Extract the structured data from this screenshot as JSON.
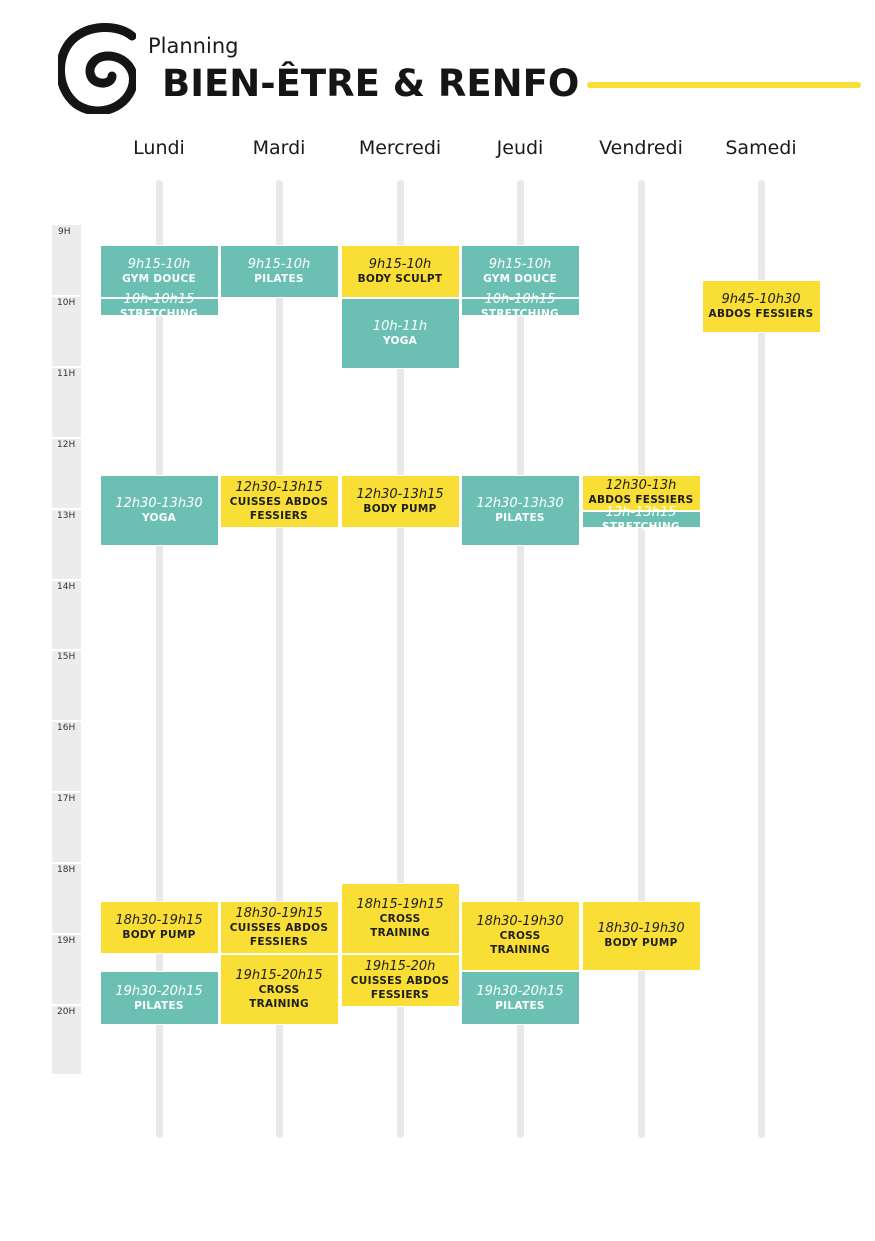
{
  "header": {
    "subtitle": "Planning",
    "title": "BIEN-ÊTRE & RENFO"
  },
  "colors": {
    "teal": "#6cc0b3",
    "yellow": "#f8de35",
    "track": "#e9e9e9",
    "hour_bar": "#ececec"
  },
  "days": [
    "Lundi",
    "Mardi",
    "Mercredi",
    "Jeudi",
    "Vendredi",
    "Samedi"
  ],
  "hours": [
    "9H",
    "10H",
    "11H",
    "12H",
    "13H",
    "14H",
    "15H",
    "16H",
    "17H",
    "18H",
    "19H",
    "20H"
  ],
  "sessions": [
    {
      "day": 0,
      "start": "9h15",
      "end": "10h",
      "time": "9h15-10h",
      "name": [
        "GYM DOUCE"
      ],
      "color": "teal"
    },
    {
      "day": 0,
      "start": "10h",
      "end": "10h15",
      "time": "10h-10h15",
      "name": [
        "STRETCHING"
      ],
      "color": "teal"
    },
    {
      "day": 0,
      "start": "12h30",
      "end": "13h30",
      "time": "12h30-13h30",
      "name": [
        "YOGA"
      ],
      "color": "teal"
    },
    {
      "day": 0,
      "start": "18h30",
      "end": "19h15",
      "time": "18h30-19h15",
      "name": [
        "BODY PUMP"
      ],
      "color": "yellow"
    },
    {
      "day": 0,
      "start": "19h30",
      "end": "20h15",
      "time": "19h30-20h15",
      "name": [
        "PILATES"
      ],
      "color": "teal"
    },
    {
      "day": 1,
      "start": "9h15",
      "end": "10h",
      "time": "9h15-10h",
      "name": [
        "PILATES"
      ],
      "color": "teal"
    },
    {
      "day": 1,
      "start": "12h30",
      "end": "13h15",
      "time": "12h30-13h15",
      "name": [
        "CUISSES ABDOS",
        "FESSIERS"
      ],
      "color": "yellow"
    },
    {
      "day": 1,
      "start": "18h30",
      "end": "19h15",
      "time": "18h30-19h15",
      "name": [
        "CUISSES ABDOS",
        "FESSIERS"
      ],
      "color": "yellow"
    },
    {
      "day": 1,
      "start": "19h15",
      "end": "20h15",
      "time": "19h15-20h15",
      "name": [
        "CROSS",
        "TRAINING"
      ],
      "color": "yellow"
    },
    {
      "day": 2,
      "start": "9h15",
      "end": "10h",
      "time": "9h15-10h",
      "name": [
        "BODY SCULPT"
      ],
      "color": "yellow"
    },
    {
      "day": 2,
      "start": "10h",
      "end": "11h",
      "time": "10h-11h",
      "name": [
        "YOGA"
      ],
      "color": "teal"
    },
    {
      "day": 2,
      "start": "12h30",
      "end": "13h15",
      "time": "12h30-13h15",
      "name": [
        "BODY PUMP"
      ],
      "color": "yellow"
    },
    {
      "day": 2,
      "start": "18h15",
      "end": "19h15",
      "time": "18h15-19h15",
      "name": [
        "CROSS",
        "TRAINING"
      ],
      "color": "yellow"
    },
    {
      "day": 2,
      "start": "19h15",
      "end": "20h",
      "time": "19h15-20h",
      "name": [
        "CUISSES ABDOS",
        "FESSIERS"
      ],
      "color": "yellow"
    },
    {
      "day": 3,
      "start": "9h15",
      "end": "10h",
      "time": "9h15-10h",
      "name": [
        "GYM DOUCE"
      ],
      "color": "teal"
    },
    {
      "day": 3,
      "start": "10h",
      "end": "10h15",
      "time": "10h-10h15",
      "name": [
        "STRETCHING"
      ],
      "color": "teal"
    },
    {
      "day": 3,
      "start": "12h30",
      "end": "13h30",
      "time": "12h30-13h30",
      "name": [
        "PILATES"
      ],
      "color": "teal"
    },
    {
      "day": 3,
      "start": "18h30",
      "end": "19h30",
      "time": "18h30-19h30",
      "name": [
        "CROSS",
        "TRAINING"
      ],
      "color": "yellow"
    },
    {
      "day": 3,
      "start": "19h30",
      "end": "20h15",
      "time": "19h30-20h15",
      "name": [
        "PILATES"
      ],
      "color": "teal"
    },
    {
      "day": 4,
      "start": "12h30",
      "end": "13h",
      "time": "12h30-13h",
      "name": [
        "ABDOS FESSIERS"
      ],
      "color": "yellow"
    },
    {
      "day": 4,
      "start": "13h",
      "end": "13h15",
      "time": "13h-13h15",
      "name": [
        "STRETCHING"
      ],
      "color": "teal"
    },
    {
      "day": 4,
      "start": "18h30",
      "end": "19h30",
      "time": "18h30-19h30",
      "name": [
        "BODY PUMP"
      ],
      "color": "yellow"
    },
    {
      "day": 5,
      "start": "9h45",
      "end": "10h30",
      "time": "9h45-10h30",
      "name": [
        "ABDOS FESSIERS"
      ],
      "color": "yellow"
    }
  ]
}
